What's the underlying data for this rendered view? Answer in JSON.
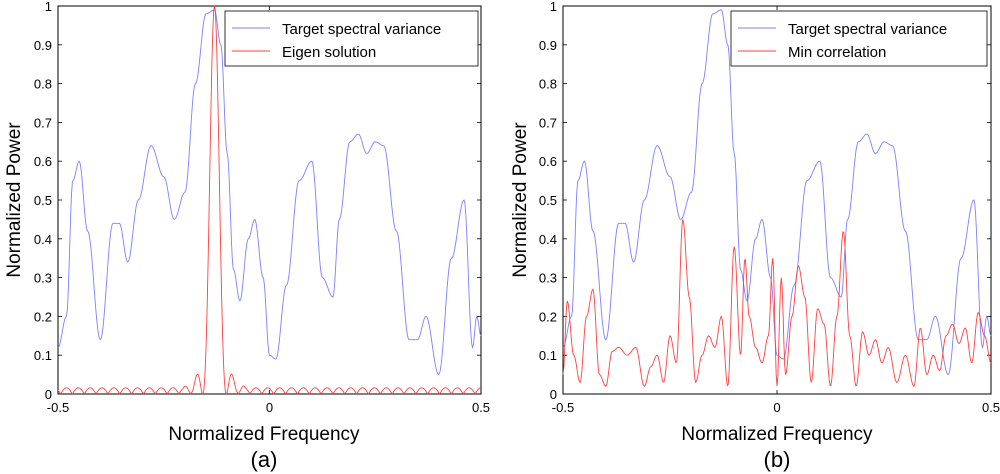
{
  "chart_data": [
    {
      "type": "line",
      "caption": "(a)",
      "xlabel": "Normalized Frequency",
      "ylabel": "Normalized Power",
      "xlim": [
        -0.5,
        0.5
      ],
      "ylim": [
        0,
        1
      ],
      "xticks": [
        -0.5,
        0,
        0.5
      ],
      "xtick_labels": [
        "-0.5",
        "0",
        "0.5"
      ],
      "yticks": [
        0,
        0.1,
        0.2,
        0.3,
        0.4,
        0.5,
        0.6,
        0.7,
        0.8,
        0.9,
        1
      ],
      "ytick_labels": [
        "0",
        "0.1",
        "0.2",
        "0.3",
        "0.4",
        "0.5",
        "0.6",
        "0.7",
        "0.8",
        "0.9",
        "1"
      ],
      "legend_position": "top-right",
      "series": [
        {
          "name": "Target spectral variance",
          "color": "#7f7fff",
          "x": [
            -0.5,
            -0.48,
            -0.465,
            -0.45,
            -0.43,
            -0.4,
            -0.37,
            -0.355,
            -0.335,
            -0.31,
            -0.28,
            -0.25,
            -0.225,
            -0.2,
            -0.175,
            -0.15,
            -0.13,
            -0.115,
            -0.1,
            -0.085,
            -0.07,
            -0.05,
            -0.035,
            -0.015,
            0,
            0.015,
            0.04,
            0.07,
            0.1,
            0.125,
            0.15,
            0.165,
            0.19,
            0.21,
            0.23,
            0.25,
            0.27,
            0.3,
            0.33,
            0.35,
            0.37,
            0.4,
            0.43,
            0.46,
            0.48,
            0.49,
            0.5
          ],
          "y": [
            0.12,
            0.2,
            0.55,
            0.6,
            0.42,
            0.14,
            0.44,
            0.44,
            0.34,
            0.5,
            0.64,
            0.56,
            0.45,
            0.52,
            0.8,
            0.98,
            0.99,
            0.9,
            0.62,
            0.32,
            0.24,
            0.4,
            0.45,
            0.3,
            0.1,
            0.09,
            0.28,
            0.55,
            0.6,
            0.3,
            0.25,
            0.45,
            0.65,
            0.67,
            0.62,
            0.65,
            0.64,
            0.42,
            0.14,
            0.14,
            0.2,
            0.05,
            0.35,
            0.5,
            0.12,
            0.2,
            0.15
          ]
        },
        {
          "name": "Eigen solution",
          "color": "#ff4040",
          "peak_x": -0.13,
          "main_width": 0.028,
          "main_max": 1.0,
          "side_scale": 0.105
        }
      ]
    },
    {
      "type": "line",
      "caption": "(b)",
      "xlabel": "Normalized Frequency",
      "ylabel": "Normalized Power",
      "xlim": [
        -0.5,
        0.5
      ],
      "ylim": [
        0,
        1
      ],
      "xticks": [
        -0.5,
        0,
        0.5
      ],
      "xtick_labels": [
        "-0.5",
        "0",
        "0.5"
      ],
      "yticks": [
        0,
        0.1,
        0.2,
        0.3,
        0.4,
        0.5,
        0.6,
        0.7,
        0.8,
        0.9,
        1
      ],
      "ytick_labels": [
        "0",
        "0.1",
        "0.2",
        "0.3",
        "0.4",
        "0.5",
        "0.6",
        "0.7",
        "0.8",
        "0.9",
        "1"
      ],
      "legend_position": "top-right",
      "series": [
        {
          "name": "Target spectral variance",
          "color": "#7f7fff",
          "x": [
            -0.5,
            -0.48,
            -0.465,
            -0.45,
            -0.43,
            -0.4,
            -0.37,
            -0.355,
            -0.335,
            -0.31,
            -0.28,
            -0.25,
            -0.225,
            -0.2,
            -0.175,
            -0.15,
            -0.13,
            -0.115,
            -0.1,
            -0.085,
            -0.07,
            -0.05,
            -0.035,
            -0.015,
            0,
            0.015,
            0.04,
            0.07,
            0.1,
            0.125,
            0.15,
            0.165,
            0.19,
            0.21,
            0.23,
            0.25,
            0.27,
            0.3,
            0.33,
            0.35,
            0.37,
            0.4,
            0.43,
            0.46,
            0.48,
            0.49,
            0.5
          ],
          "y": [
            0.12,
            0.2,
            0.55,
            0.6,
            0.42,
            0.14,
            0.44,
            0.44,
            0.34,
            0.5,
            0.64,
            0.56,
            0.45,
            0.52,
            0.8,
            0.98,
            0.99,
            0.9,
            0.62,
            0.32,
            0.24,
            0.4,
            0.45,
            0.3,
            0.1,
            0.09,
            0.28,
            0.55,
            0.6,
            0.3,
            0.25,
            0.45,
            0.65,
            0.67,
            0.62,
            0.65,
            0.64,
            0.42,
            0.14,
            0.14,
            0.2,
            0.05,
            0.35,
            0.5,
            0.12,
            0.2,
            0.15
          ]
        },
        {
          "name": "Min correlation",
          "color": "#ff4040",
          "x": [
            -0.5,
            -0.49,
            -0.475,
            -0.46,
            -0.445,
            -0.43,
            -0.415,
            -0.4,
            -0.385,
            -0.37,
            -0.35,
            -0.33,
            -0.31,
            -0.295,
            -0.28,
            -0.265,
            -0.25,
            -0.235,
            -0.22,
            -0.205,
            -0.19,
            -0.175,
            -0.16,
            -0.145,
            -0.13,
            -0.115,
            -0.1,
            -0.085,
            -0.075,
            -0.065,
            -0.05,
            -0.035,
            -0.02,
            -0.01,
            0,
            0.01,
            0.02,
            0.035,
            0.05,
            0.065,
            0.08,
            0.095,
            0.11,
            0.125,
            0.14,
            0.155,
            0.17,
            0.185,
            0.2,
            0.215,
            0.23,
            0.245,
            0.26,
            0.28,
            0.3,
            0.32,
            0.335,
            0.35,
            0.365,
            0.38,
            0.395,
            0.41,
            0.425,
            0.44,
            0.455,
            0.47,
            0.485,
            0.5
          ],
          "y": [
            0.05,
            0.24,
            0.1,
            0.03,
            0.2,
            0.27,
            0.05,
            0.02,
            0.11,
            0.12,
            0.1,
            0.12,
            0.02,
            0.07,
            0.1,
            0.03,
            0.15,
            0.08,
            0.45,
            0.25,
            0.03,
            0.1,
            0.15,
            0.12,
            0.2,
            0.02,
            0.38,
            0.1,
            0.35,
            0.2,
            0.12,
            0.08,
            0.15,
            0.35,
            0.02,
            0.3,
            0.05,
            0.2,
            0.33,
            0.25,
            0.03,
            0.22,
            0.18,
            0.02,
            0.2,
            0.42,
            0.15,
            0.02,
            0.16,
            0.1,
            0.14,
            0.08,
            0.12,
            0.03,
            0.1,
            0.02,
            0.17,
            0.05,
            0.1,
            0.06,
            0.15,
            0.18,
            0.13,
            0.17,
            0.08,
            0.21,
            0.15,
            0.08
          ]
        }
      ]
    }
  ]
}
